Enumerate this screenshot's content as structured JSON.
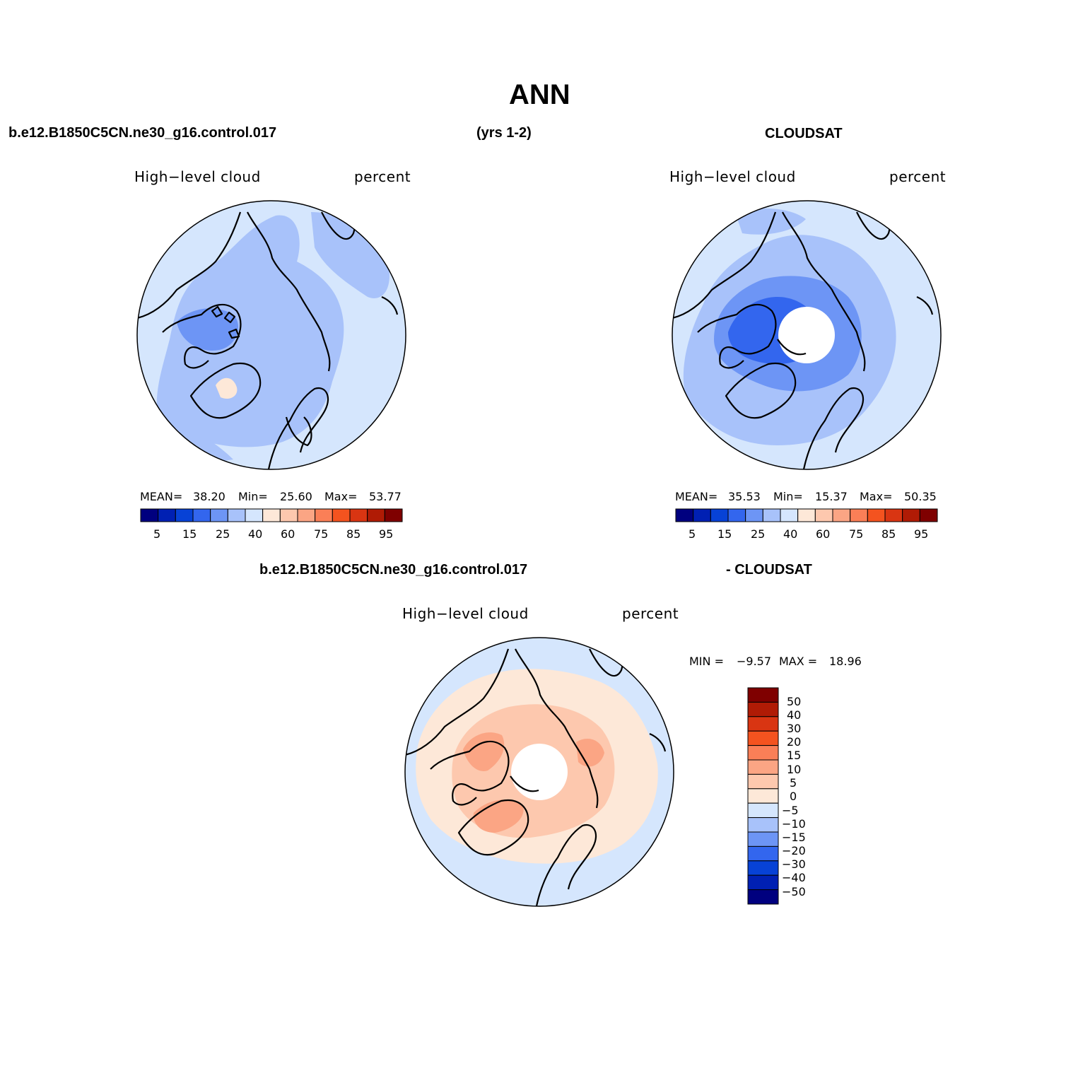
{
  "page": {
    "title": "ANN",
    "header": {
      "case_name": "b.e12.B1850C5CN.ne30_g16.control.017",
      "years": "(yrs 1-2)",
      "obs_name": "CLOUDSAT"
    },
    "diff_header": {
      "case_name": "b.e12.B1850C5CN.ne30_g16.control.017",
      "obs_name": "- CLOUDSAT"
    }
  },
  "panels": {
    "model": {
      "variable": "High−level cloud",
      "units": "percent",
      "mean_label": "MEAN=",
      "mean": "38.20",
      "min_label": "Min=",
      "min": "25.60",
      "max_label": "Max=",
      "max": "53.77"
    },
    "obs": {
      "variable": "High−level cloud",
      "units": "percent",
      "mean_label": "MEAN=",
      "mean": "35.53",
      "min_label": "Min=",
      "min": "15.37",
      "max_label": "Max=",
      "max": "50.35"
    },
    "diff": {
      "variable": "High−level cloud",
      "units": "percent",
      "min_label": "MIN =",
      "min": "−9.57",
      "max_label": "MAX =",
      "max": "18.96"
    }
  },
  "colorbars": {
    "field": {
      "colors": [
        "#00007f",
        "#0020b3",
        "#0742d6",
        "#3366ee",
        "#6d95f5",
        "#a8c2fa",
        "#d5e6fd",
        "#fde8d8",
        "#fdc8ae",
        "#fba584",
        "#fa7f57",
        "#f4531f",
        "#d93512",
        "#b01b05",
        "#7f0000"
      ],
      "tick_labels": [
        "5",
        "15",
        "25",
        "40",
        "60",
        "75",
        "85",
        "95"
      ]
    },
    "diff": {
      "colors_top_to_bottom": [
        "#7f0000",
        "#b01b05",
        "#d93512",
        "#f4531f",
        "#fa7f57",
        "#fba584",
        "#fdc8ae",
        "#fde8d8",
        "#d5e6fd",
        "#a8c2fa",
        "#6d95f5",
        "#3366ee",
        "#0742d6",
        "#0020b3",
        "#00007f"
      ],
      "tick_labels": [
        "50",
        "40",
        "30",
        "20",
        "15",
        "10",
        "5",
        "0",
        "−5",
        "−10",
        "−15",
        "−20",
        "−30",
        "−40",
        "−50"
      ]
    }
  },
  "map_fills": {
    "model": {
      "outer": "#d5e6fd",
      "mid": "#a8c2fa",
      "inner": "#a8c2fa",
      "core": "#6d95f5",
      "patch": "#fde8d8",
      "hole": false
    },
    "obs": {
      "outer": "#d5e6fd",
      "mid": "#a8c2fa",
      "inner": "#6d95f5",
      "core": "#3366ee",
      "patch": "#a8c2fa",
      "hole": true
    },
    "diff": {
      "outer": "#d5e6fd",
      "mid": "#fde8d8",
      "inner": "#fdc8ae",
      "core": "#fba584",
      "patch": "#fba584",
      "hole": true
    }
  }
}
